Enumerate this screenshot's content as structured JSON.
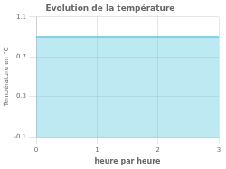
{
  "chart_data": {
    "type": "area",
    "title": "Evolution de la température",
    "xlabel": "heure par heure",
    "ylabel": "Température en °C",
    "x": [
      0,
      3
    ],
    "values": [
      0.9,
      0.9
    ],
    "color": "#5bc8e0",
    "xlim": [
      0,
      3
    ],
    "ylim": [
      -0.1,
      1.1
    ],
    "xticks": [
      0,
      1,
      2,
      3
    ],
    "yticks": [
      -0.1,
      0.3,
      0.7,
      1.1
    ],
    "grid": true
  }
}
